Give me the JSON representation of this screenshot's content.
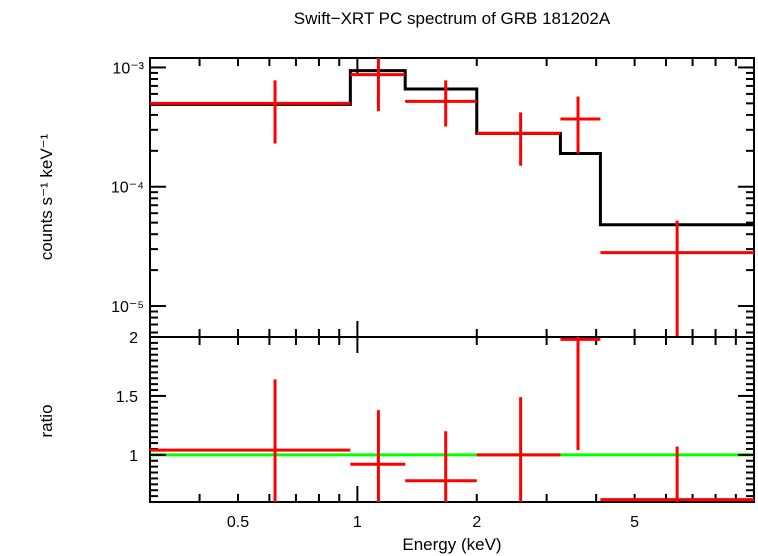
{
  "chart_data": [
    {
      "type": "line",
      "title": "Swift−XRT PC spectrum of GRB 181202A",
      "ylabel": "counts s⁻¹ keV⁻¹",
      "xscale": "log",
      "yscale": "log",
      "xlim": [
        0.3,
        10
      ],
      "ylim": [
        5.5e-06,
        0.0012
      ],
      "y_tick_labels": [
        "10⁻³",
        "10⁻⁴",
        "10⁻⁵"
      ],
      "y_tick_values": [
        0.001,
        0.0001,
        1e-05
      ],
      "grid": false,
      "data_points": {
        "color": "#ff0000",
        "points": [
          {
            "xlo": 0.3,
            "xhi": 0.96,
            "x": 0.62,
            "y": 0.0005,
            "ylo": 0.00023,
            "yhi": 0.00078
          },
          {
            "xlo": 0.96,
            "xhi": 1.32,
            "x": 1.13,
            "y": 0.00087,
            "ylo": 0.00043,
            "yhi": 0.00125
          },
          {
            "xlo": 1.32,
            "xhi": 2.0,
            "x": 1.67,
            "y": 0.00052,
            "ylo": 0.00032,
            "yhi": 0.00078
          },
          {
            "xlo": 2.0,
            "xhi": 3.25,
            "x": 2.58,
            "y": 0.00028,
            "ylo": 0.00015,
            "yhi": 0.00042
          },
          {
            "xlo": 3.25,
            "xhi": 4.1,
            "x": 3.6,
            "y": 0.00037,
            "ylo": 0.00019,
            "yhi": 0.00057
          },
          {
            "xlo": 4.1,
            "xhi": 10,
            "x": 6.4,
            "y": 2.8e-05,
            "ylo": 5.5e-06,
            "yhi": 5.2e-05
          }
        ]
      },
      "model": {
        "color": "#000000",
        "steps": [
          {
            "xlo": 0.3,
            "xhi": 0.96,
            "y": 0.00049
          },
          {
            "xlo": 0.96,
            "xhi": 1.32,
            "y": 0.00094
          },
          {
            "xlo": 1.32,
            "xhi": 2.0,
            "y": 0.00066
          },
          {
            "xlo": 2.0,
            "xhi": 3.25,
            "y": 0.00028
          },
          {
            "xlo": 3.25,
            "xhi": 4.1,
            "y": 0.00019
          },
          {
            "xlo": 4.1,
            "xhi": 10,
            "y": 4.8e-05
          }
        ]
      }
    },
    {
      "type": "line",
      "xlabel": "Energy (keV)",
      "ylabel": "ratio",
      "xscale": "log",
      "xlim": [
        0.3,
        10
      ],
      "ylim": [
        0.6,
        2.0
      ],
      "x_tick_labels": [
        "0.5",
        "1",
        "2",
        "5"
      ],
      "x_tick_values": [
        0.5,
        1,
        2,
        5
      ],
      "y_tick_labels": [
        "1",
        "1.5",
        "2"
      ],
      "y_tick_values": [
        1,
        1.5,
        2
      ],
      "grid": false,
      "reference_line": {
        "y": 1,
        "color": "#00ff00"
      },
      "data_points": {
        "color": "#ff0000",
        "points": [
          {
            "xlo": 0.3,
            "xhi": 0.96,
            "x": 0.62,
            "y": 1.04,
            "ylo": 0.6,
            "yhi": 1.64
          },
          {
            "xlo": 0.96,
            "xhi": 1.32,
            "x": 1.13,
            "y": 0.92,
            "ylo": 0.6,
            "yhi": 1.38
          },
          {
            "xlo": 1.32,
            "xhi": 2.0,
            "x": 1.67,
            "y": 0.78,
            "ylo": 0.6,
            "yhi": 1.2
          },
          {
            "xlo": 2.0,
            "xhi": 3.25,
            "x": 2.58,
            "y": 1.0,
            "ylo": 0.6,
            "yhi": 1.49
          },
          {
            "xlo": 3.25,
            "xhi": 4.1,
            "x": 3.6,
            "y": 1.98,
            "ylo": 1.04,
            "yhi": 2.0
          },
          {
            "xlo": 4.1,
            "xhi": 10,
            "x": 6.4,
            "y": 0.62,
            "ylo": 0.6,
            "yhi": 1.07
          }
        ]
      }
    }
  ]
}
